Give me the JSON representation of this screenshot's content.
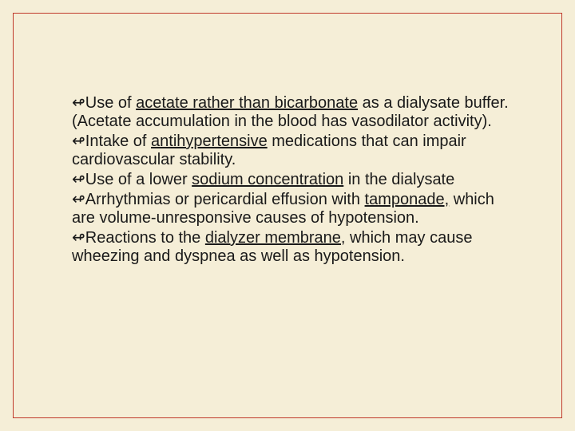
{
  "slide": {
    "background_color": "#f5eed7",
    "border_color": "#c0392b",
    "text_color": "#1a1a1a",
    "font_size": 20,
    "bullets": [
      {
        "pre": "Use of ",
        "u1": "acetate rather than bicarbonate",
        "mid": " as a dialysate buffer. (Acetate accumulation in the blood has vasodilator activity).",
        "u2": "",
        "post": ""
      },
      {
        "pre": "Intake of ",
        "u1": "antihypertensive",
        "mid": " medications that can impair cardiovascular stability.",
        "u2": "",
        "post": ""
      },
      {
        "pre": "Use of a lower ",
        "u1": "sodium concentration",
        "mid": " in the dialysate",
        "u2": "",
        "post": ""
      },
      {
        "pre": "Arrhythmias or pericardial effusion with ",
        "u1": "tamponade,",
        "mid": " which are volume-unresponsive causes of hypotension.",
        "u2": "",
        "post": ""
      },
      {
        "pre": "Reactions to the ",
        "u1": "dialyzer membrane,",
        "mid": " which may cause wheezing and dyspnea as well as hypotension.",
        "u2": "",
        "post": ""
      }
    ]
  }
}
